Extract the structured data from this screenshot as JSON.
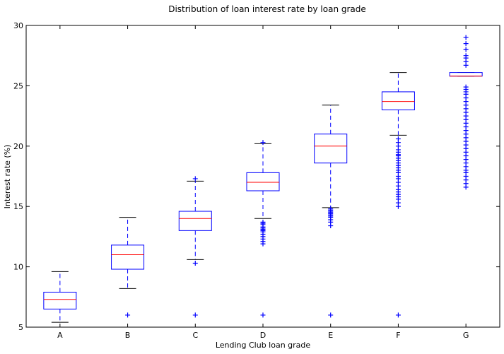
{
  "chart_data": {
    "type": "box",
    "title": "Distribution of loan interest rate by loan grade",
    "xlabel": "Lending Club loan grade",
    "ylabel": "Interest rate (%)",
    "ylim": [
      5,
      30
    ],
    "yticks": [
      5,
      10,
      15,
      20,
      25,
      30
    ],
    "grid": false,
    "colors": {
      "box": "#0000ff",
      "median": "#ff0000",
      "whisker": "#0000ff",
      "cap": "#000000",
      "flier": "#0000ff"
    },
    "categories": [
      "A",
      "B",
      "C",
      "D",
      "E",
      "F",
      "G"
    ],
    "boxes": [
      {
        "category": "A",
        "whislo": 5.4,
        "q1": 6.5,
        "median": 7.3,
        "q3": 7.9,
        "whishi": 9.6,
        "fliers": []
      },
      {
        "category": "B",
        "whislo": 8.2,
        "q1": 9.8,
        "median": 11.0,
        "q3": 11.8,
        "whishi": 14.1,
        "fliers": [
          6.0
        ]
      },
      {
        "category": "C",
        "whislo": 10.6,
        "q1": 13.0,
        "median": 14.0,
        "q3": 14.6,
        "whishi": 17.1,
        "fliers": [
          6.0,
          10.3,
          17.3
        ]
      },
      {
        "category": "D",
        "whislo": 14.0,
        "q1": 16.3,
        "median": 17.0,
        "q3": 17.8,
        "whishi": 20.2,
        "fliers": [
          6.0,
          11.9,
          12.1,
          12.3,
          12.5,
          12.7,
          12.9,
          13.0,
          13.1,
          13.2,
          13.3,
          13.5,
          13.6,
          13.7,
          20.3
        ]
      },
      {
        "category": "E",
        "whislo": 14.9,
        "q1": 18.6,
        "median": 20.0,
        "q3": 21.0,
        "whishi": 23.4,
        "fliers": [
          6.0,
          13.4,
          13.7,
          13.9,
          14.1,
          14.2,
          14.3,
          14.4,
          14.5,
          14.6,
          14.7,
          14.8
        ]
      },
      {
        "category": "F",
        "whislo": 20.9,
        "q1": 23.0,
        "median": 23.7,
        "q3": 24.5,
        "whishi": 26.1,
        "fliers": [
          6.0,
          15.0,
          15.3,
          15.6,
          15.8,
          16.0,
          16.2,
          16.4,
          16.7,
          17.0,
          17.3,
          17.5,
          17.8,
          18.0,
          18.2,
          18.4,
          18.6,
          18.8,
          19.0,
          19.2,
          19.3,
          19.5,
          19.7,
          20.0,
          20.3,
          20.6
        ]
      },
      {
        "category": "G",
        "whislo": 25.8,
        "q1": 25.8,
        "median": 25.8,
        "q3": 26.1,
        "whishi": 26.1,
        "fliers": [
          16.6,
          16.9,
          17.2,
          17.5,
          17.8,
          18.0,
          18.3,
          18.6,
          18.9,
          19.2,
          19.5,
          19.8,
          20.1,
          20.4,
          20.7,
          21.0,
          21.3,
          21.6,
          21.9,
          22.2,
          22.5,
          22.8,
          23.1,
          23.4,
          23.7,
          24.0,
          24.3,
          24.5,
          24.7,
          24.9,
          26.7,
          27.0,
          27.3,
          27.5,
          28.0,
          28.5,
          29.0
        ]
      }
    ]
  }
}
